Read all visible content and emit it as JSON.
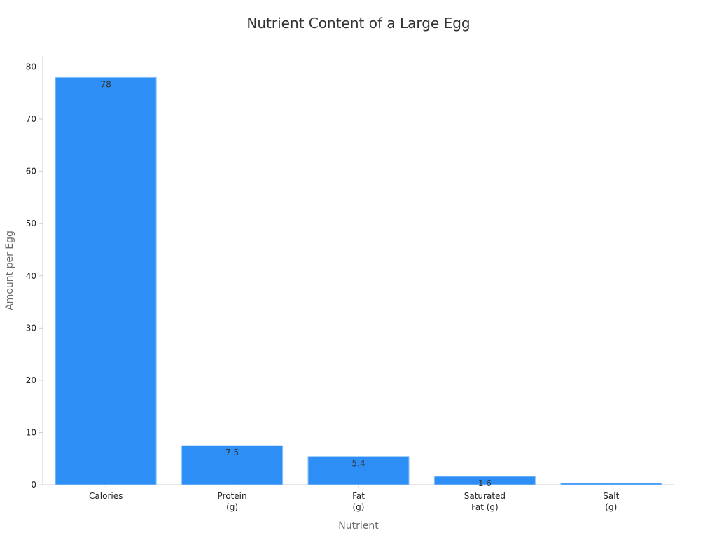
{
  "chart_data": {
    "type": "bar",
    "title": "Nutrient Content of a Large Egg",
    "xlabel": "Nutrient",
    "ylabel": "Amount per Egg",
    "categories": [
      [
        "Calories"
      ],
      [
        "Protein",
        "(g)"
      ],
      [
        "Fat",
        "(g)"
      ],
      [
        "Saturated",
        "Fat (g)"
      ],
      [
        "Salt",
        "(g)"
      ]
    ],
    "values": [
      78,
      7.5,
      5.4,
      1.6,
      0.3
    ],
    "data_labels": [
      "78",
      "7.5",
      "5.4",
      "1.6",
      ""
    ],
    "ylim": [
      0,
      82
    ],
    "yticks": [
      0,
      10,
      20,
      30,
      40,
      50,
      60,
      70,
      80
    ],
    "grid": false,
    "legend": "none",
    "colors": {
      "bar_fill": "#2d8ff5",
      "bar_stroke": "#8fc2f7",
      "axis": "#cccccc",
      "text": "#333333"
    }
  }
}
